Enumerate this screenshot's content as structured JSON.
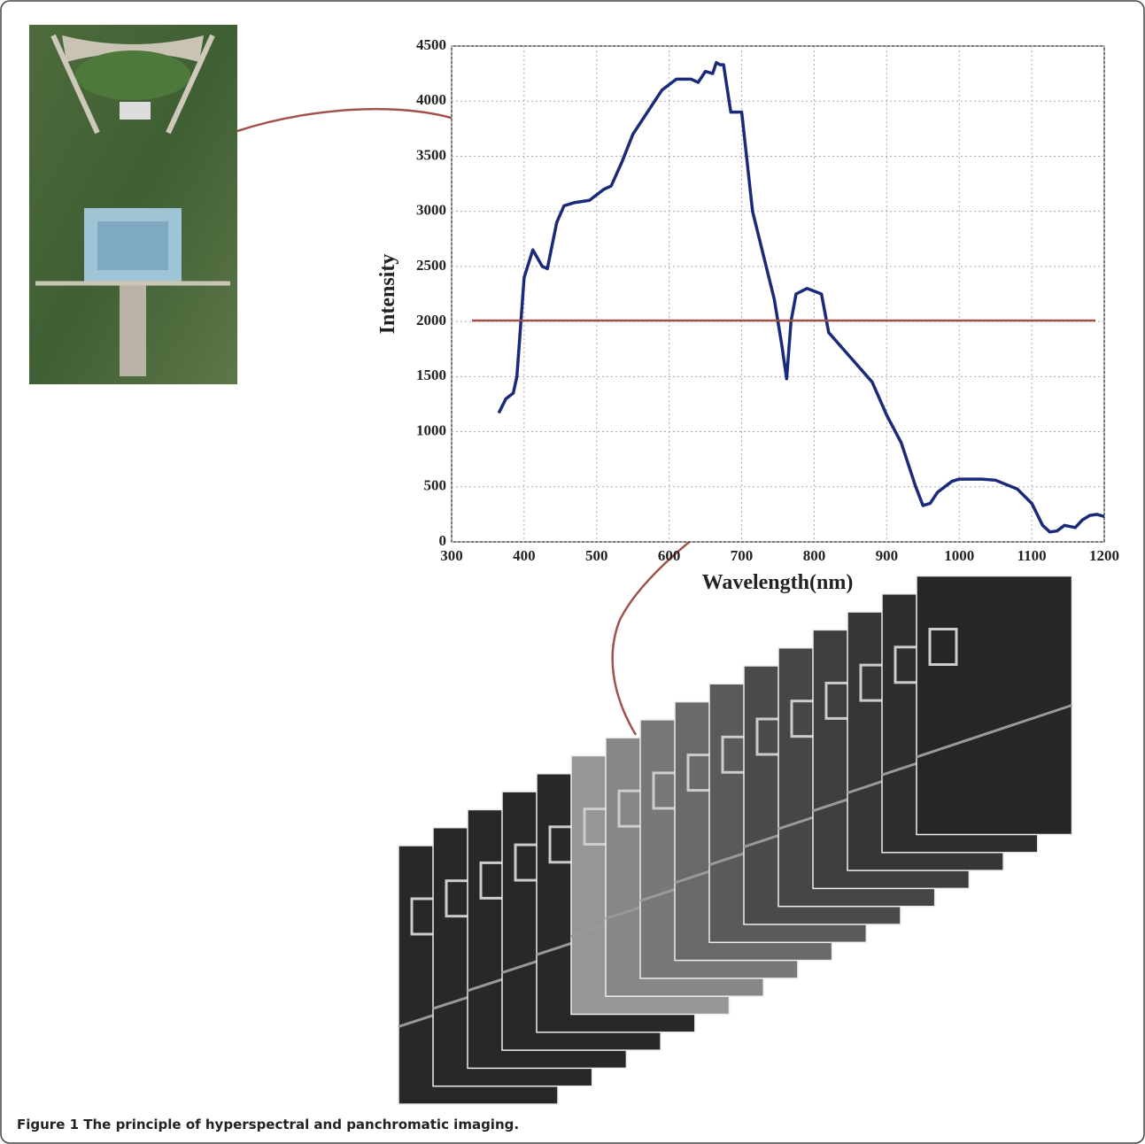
{
  "chart_data": {
    "type": "line",
    "x_label": "Wavelength(nm)",
    "y_label": "Intensity",
    "caption": "Figure 1 The principle of hyperspectral and panchromatic imaging.",
    "xlim": [
      300,
      1200
    ],
    "ylim": [
      0,
      4500
    ],
    "xticks": [
      300,
      400,
      500,
      600,
      700,
      800,
      900,
      1000,
      1100,
      1200
    ],
    "yticks": [
      0,
      500,
      1000,
      1500,
      2000,
      2500,
      3000,
      3500,
      4000,
      4500
    ],
    "grid": true,
    "series": [
      {
        "color": "#1a2a7a",
        "x": [
          365,
          375,
          385,
          390,
          400,
          412,
          425,
          432,
          445,
          455,
          470,
          490,
          500,
          510,
          520,
          535,
          550,
          570,
          590,
          610,
          630,
          640,
          650,
          660,
          665,
          670,
          675,
          685,
          700,
          715,
          730,
          745,
          755,
          762,
          768,
          775,
          790,
          810,
          820,
          840,
          860,
          880,
          900,
          920,
          940,
          950,
          960,
          970,
          990,
          1000,
          1030,
          1050,
          1080,
          1100,
          1115,
          1125,
          1135,
          1145,
          1160,
          1170,
          1180,
          1190,
          1200
        ],
        "values": [
          1170,
          1300,
          1350,
          1500,
          2400,
          2650,
          2500,
          2480,
          2900,
          3050,
          3080,
          3100,
          3150,
          3200,
          3230,
          3450,
          3700,
          3900,
          4100,
          4200,
          4200,
          4170,
          4270,
          4250,
          4350,
          4330,
          4330,
          3900,
          3900,
          3000,
          2600,
          2200,
          1800,
          1480,
          2000,
          2250,
          2300,
          2250,
          1900,
          1750,
          1600,
          1450,
          1150,
          900,
          500,
          330,
          350,
          450,
          550,
          570,
          570,
          560,
          480,
          350,
          150,
          90,
          100,
          150,
          130,
          200,
          240,
          250,
          230
        ]
      }
    ]
  }
}
